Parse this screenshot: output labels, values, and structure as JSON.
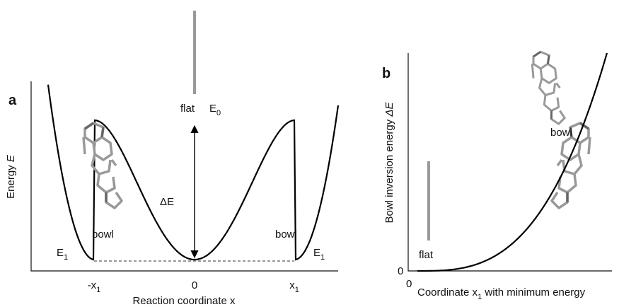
{
  "panel_a": {
    "label": "a",
    "y_axis_label": {
      "text": "Energy",
      "symbol": "E"
    },
    "x_axis_label": "Reaction coordinate x",
    "x_ticks": [
      {
        "main": "-x",
        "sub": "1"
      },
      {
        "main": "0"
      },
      {
        "main": "x",
        "sub": "1"
      }
    ],
    "top_labels": {
      "state": "flat",
      "energy": {
        "main": "E",
        "sub": "0"
      }
    },
    "wells": [
      {
        "state": "bowl",
        "energy": {
          "main": "E",
          "sub": "1"
        }
      },
      {
        "state": "bowl",
        "energy": {
          "main": "E",
          "sub": "1"
        }
      }
    ],
    "barrier": "ΔE"
  },
  "panel_b": {
    "label": "b",
    "y_axis_label": {
      "text": "Bowl inversion energy",
      "symbol": "ΔE"
    },
    "x_axis_label": {
      "pre": "Coordinate x",
      "sub": "1",
      "post": " with minimum energy"
    },
    "y_origin": "0",
    "x_origin": "0",
    "flat_label": "flat",
    "bowl_label": "bowl"
  }
}
